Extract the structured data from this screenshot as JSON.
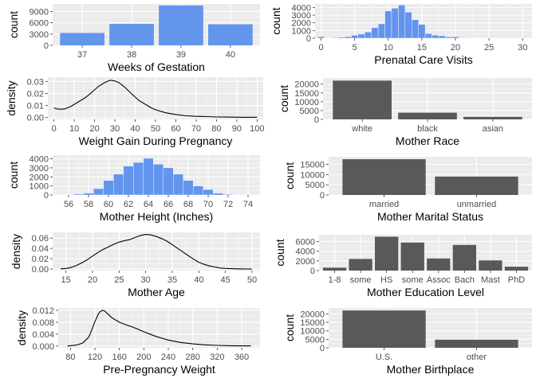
{
  "chart_data": [
    {
      "type": "bar",
      "xlabel": "Weeks of Gestation",
      "ylabel": "count",
      "categories": [
        "37",
        "38",
        "39",
        "40"
      ],
      "values": [
        3300,
        5700,
        10600,
        5600
      ],
      "ylim": [
        0,
        11000
      ],
      "yticks": [
        0,
        3000,
        6000,
        9000
      ],
      "bar_color": "#6495ED",
      "grid": true
    },
    {
      "type": "bar",
      "xlabel": "Prenatal Care Visits",
      "ylabel": "count",
      "x_numeric": true,
      "bin_width": 1,
      "x": [
        0,
        1,
        2,
        3,
        4,
        5,
        6,
        7,
        8,
        9,
        10,
        11,
        12,
        13,
        14,
        15,
        16,
        17,
        18,
        19,
        20,
        21,
        22,
        23,
        24,
        25,
        26,
        27,
        28,
        29,
        30
      ],
      "values": [
        200,
        40,
        70,
        120,
        200,
        380,
        530,
        800,
        1380,
        1870,
        3550,
        3900,
        4300,
        3400,
        2400,
        1800,
        600,
        400,
        310,
        160,
        190,
        60,
        40,
        30,
        30,
        20,
        10,
        10,
        10,
        10,
        20
      ],
      "xlim": [
        -0.9,
        31.4
      ],
      "xticks": [
        0,
        5,
        10,
        15,
        20,
        25,
        30
      ],
      "ylim": [
        0,
        4450
      ],
      "yticks": [
        0,
        1000,
        2000,
        3000,
        4000
      ],
      "bar_color": "#6495ED",
      "grid": true
    },
    {
      "type": "line",
      "xlabel": "Weight Gain During Pregnancy",
      "ylabel": "density",
      "x": [
        0,
        2,
        5,
        8,
        10,
        12,
        15,
        18,
        20,
        22,
        25,
        27,
        28,
        30,
        32,
        35,
        38,
        40,
        42,
        45,
        48,
        50,
        55,
        60,
        65,
        70,
        75,
        80,
        85,
        90,
        95,
        100
      ],
      "y": [
        0.008,
        0.007,
        0.007,
        0.009,
        0.011,
        0.013,
        0.016,
        0.02,
        0.023,
        0.026,
        0.029,
        0.0305,
        0.031,
        0.0303,
        0.029,
        0.025,
        0.02,
        0.017,
        0.014,
        0.011,
        0.008,
        0.0065,
        0.004,
        0.0025,
        0.0015,
        0.001,
        0.0008,
        0.0005,
        0.0004,
        0.0003,
        0.0002,
        0.0003
      ],
      "xlim": [
        -3,
        103
      ],
      "xticks": [
        0,
        10,
        20,
        30,
        40,
        50,
        60,
        70,
        80,
        90,
        100
      ],
      "ylim": [
        -0.0015,
        0.0335
      ],
      "yticks": [
        0.0,
        0.01,
        0.02,
        0.03
      ],
      "ytick_labels": [
        "0.00",
        "0.01",
        "0.02",
        "0.03"
      ],
      "line_color": "#000000",
      "grid": true
    },
    {
      "type": "bar",
      "xlabel": "Mother Race",
      "ylabel": "count",
      "categories": [
        "white",
        "black",
        "asian"
      ],
      "values": [
        22000,
        3800,
        1400
      ],
      "ylim": [
        0,
        23500
      ],
      "yticks": [
        0,
        5000,
        10000,
        15000,
        20000
      ],
      "bar_color": "#595959",
      "grid": true
    },
    {
      "type": "bar",
      "xlabel": "Mother Height (Inches)",
      "ylabel": "count",
      "x_numeric": true,
      "bin_width": 1,
      "x": [
        55,
        56,
        57,
        58,
        59,
        60,
        61,
        62,
        63,
        64,
        65,
        66,
        67,
        68,
        69,
        70,
        71,
        72,
        73,
        74
      ],
      "values": [
        20,
        30,
        100,
        200,
        700,
        1600,
        2300,
        3200,
        3600,
        4050,
        3400,
        3000,
        2300,
        1600,
        1000,
        600,
        200,
        80,
        30,
        20
      ],
      "xlim": [
        54.4,
        75.2
      ],
      "xticks": [
        56,
        58,
        60,
        62,
        64,
        66,
        68,
        70,
        72,
        74
      ],
      "ylim": [
        0,
        4400
      ],
      "yticks": [
        0,
        1000,
        2000,
        3000,
        4000
      ],
      "bar_color": "#6495ED",
      "grid": true
    },
    {
      "type": "bar",
      "xlabel": "Mother Marital Status",
      "ylabel": "count",
      "categories": [
        "married",
        "unmarried"
      ],
      "values": [
        17500,
        9000
      ],
      "ylim": [
        0,
        18700
      ],
      "yticks": [
        0,
        5000,
        10000,
        15000
      ],
      "bar_color": "#595959",
      "grid": true
    },
    {
      "type": "line",
      "xlabel": "Mother Age",
      "ylabel": "density",
      "x": [
        14,
        15,
        16,
        17,
        18,
        19,
        20,
        21,
        22,
        23,
        24,
        25,
        26,
        27,
        28,
        29,
        30,
        31,
        32,
        33,
        34,
        35,
        36,
        37,
        38,
        39,
        40,
        41,
        42,
        43,
        44,
        45,
        46,
        47,
        48,
        49,
        50
      ],
      "y": [
        0.0005,
        0.001,
        0.003,
        0.007,
        0.012,
        0.018,
        0.025,
        0.032,
        0.038,
        0.043,
        0.048,
        0.052,
        0.055,
        0.057,
        0.061,
        0.065,
        0.067,
        0.066,
        0.063,
        0.059,
        0.054,
        0.047,
        0.04,
        0.033,
        0.026,
        0.019,
        0.013,
        0.009,
        0.006,
        0.004,
        0.002,
        0.0012,
        0.0007,
        0.0004,
        0.0002,
        0.0001,
        0.0001
      ],
      "xlim": [
        12.5,
        51.5
      ],
      "xticks": [
        15,
        20,
        25,
        30,
        35,
        40,
        45,
        50
      ],
      "ylim": [
        -0.003,
        0.071
      ],
      "yticks": [
        0.0,
        0.02,
        0.04,
        0.06
      ],
      "ytick_labels": [
        "0.00",
        "0.02",
        "0.04",
        "0.06"
      ],
      "line_color": "#000000",
      "grid": true
    },
    {
      "type": "bar",
      "xlabel": "Mother Education Level",
      "ylabel": "count",
      "categories": [
        "1-8",
        "some",
        "HS",
        "some",
        "Assoc",
        "Bach",
        "Mast",
        "PhD"
      ],
      "values": [
        600,
        2400,
        7000,
        5800,
        2500,
        5300,
        2100,
        800
      ],
      "ylim": [
        0,
        7400
      ],
      "yticks": [
        0,
        2000,
        4000,
        6000
      ],
      "bar_color": "#595959",
      "grid": true
    },
    {
      "type": "line",
      "xlabel": "Pre-Pregnancy Weight",
      "ylabel": "density",
      "x": [
        75,
        90,
        100,
        105,
        110,
        115,
        120,
        125,
        128,
        132,
        136,
        140,
        145,
        150,
        160,
        170,
        180,
        190,
        200,
        210,
        220,
        230,
        240,
        260,
        280,
        300,
        320,
        340,
        360,
        375
      ],
      "y": [
        0.0,
        0.0003,
        0.001,
        0.002,
        0.003,
        0.0055,
        0.0082,
        0.0105,
        0.0115,
        0.012,
        0.0118,
        0.011,
        0.01,
        0.0092,
        0.008,
        0.0072,
        0.0065,
        0.0057,
        0.0048,
        0.004,
        0.0032,
        0.0026,
        0.002,
        0.0012,
        0.0007,
        0.0004,
        0.0002,
        0.0001,
        5e-05,
        3e-05
      ],
      "xlim": [
        60,
        390
      ],
      "xticks": [
        80,
        120,
        160,
        200,
        240,
        280,
        320,
        360
      ],
      "ylim": [
        -0.0006,
        0.0128
      ],
      "yticks": [
        0.0,
        0.004,
        0.008,
        0.012
      ],
      "ytick_labels": [
        "0.000",
        "0.004",
        "0.008",
        "0.012"
      ],
      "line_color": "#000000",
      "grid": true
    },
    {
      "type": "bar",
      "xlabel": "Mother Birthplace",
      "ylabel": "count",
      "categories": [
        "U.S.",
        "other"
      ],
      "values": [
        22000,
        4800
      ],
      "ylim": [
        0,
        23500
      ],
      "yticks": [
        0,
        5000,
        10000,
        15000,
        20000
      ],
      "bar_color": "#595959",
      "grid": true
    }
  ],
  "colors": {
    "panel_background": "#EBEBEB",
    "major_grid": "#FFFFFF",
    "tick_text": "#4D4D4D",
    "axis_title": "#000000"
  }
}
